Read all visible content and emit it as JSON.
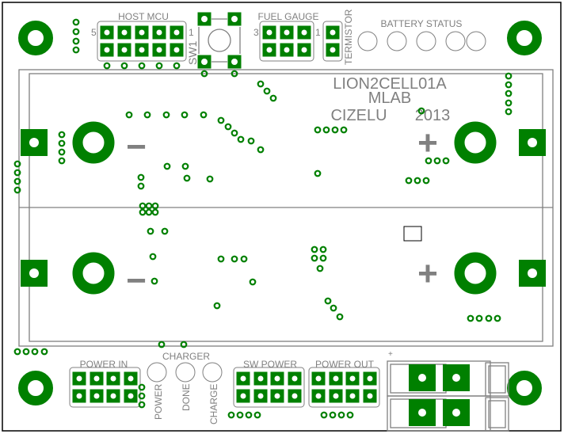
{
  "board": {
    "title_lines": [
      "LION2CELL01A",
      "MLAB",
      "CIZELU",
      "2013"
    ],
    "colors": {
      "copper": "#008000",
      "silkscreen": "#808080",
      "outline": "#000000"
    }
  },
  "headers": {
    "host_mcu": {
      "label": "HOST MCU",
      "pin_left": "5",
      "pin_right": "1"
    },
    "fuel_gauge": {
      "label": "FUEL GAUGE",
      "pin_left": "3",
      "pin_right": "1"
    },
    "termistor": {
      "label": "TERMISTOR"
    },
    "switch": {
      "label": "SW1"
    },
    "battery_status": {
      "label": "BATTERY STATUS"
    },
    "power_in": {
      "label": "POWER IN"
    },
    "charger": {
      "label": "CHARGER",
      "leds": [
        "POWER",
        "DONE",
        "CHARGE"
      ]
    },
    "sw_power": {
      "label": "SW POWER"
    },
    "power_out": {
      "label": "POWER OUT"
    },
    "connector_plus": "+"
  },
  "battery_polarity": {
    "minus": "−",
    "plus": "+"
  }
}
